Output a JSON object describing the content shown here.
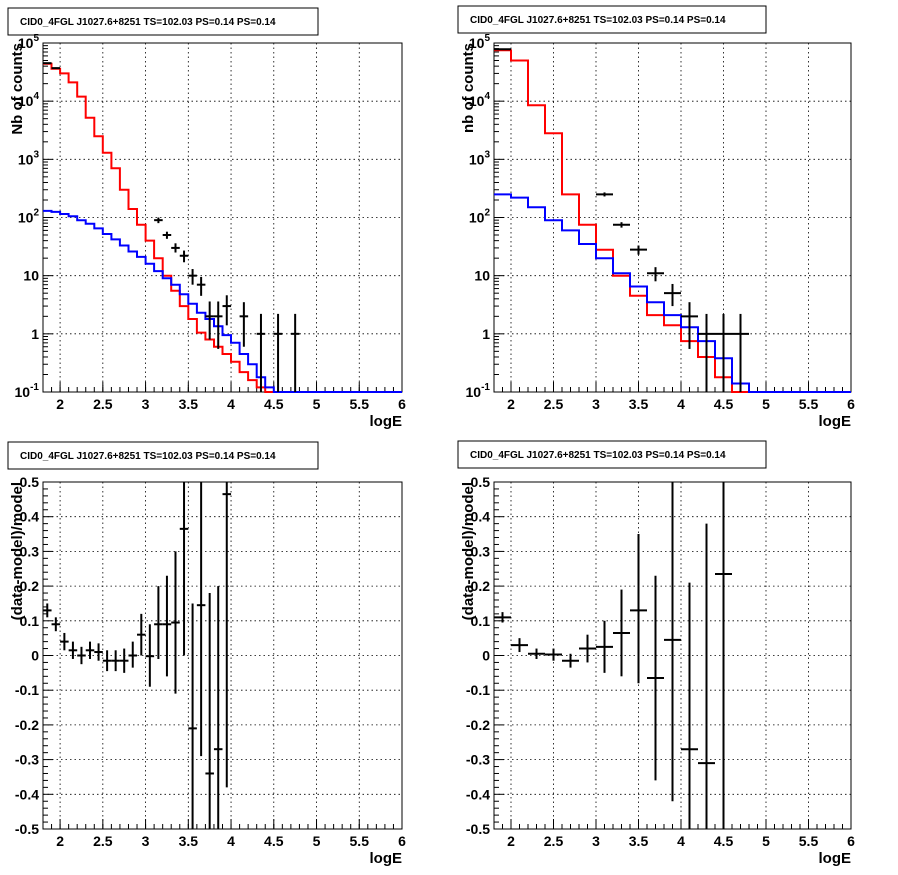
{
  "chart_data": [
    {
      "type": "step",
      "title": "CID0_4FGL J1027.6+8251 TS=102.03 PS=0.14 PS=0.14",
      "xlabel": "logE",
      "ylabel": "Nb of counts",
      "xlim": [
        1.8,
        6.0
      ],
      "ylim": [
        0.1,
        100000
      ],
      "yscale": "log",
      "grid": true,
      "x_ticks": [
        "2",
        "2.5",
        "3",
        "3.5",
        "4",
        "4.5",
        "5",
        "5.5",
        "6"
      ],
      "y_ticks": [
        "10^-1",
        "1",
        "10",
        "10^2",
        "10^3",
        "10^4",
        "10^5"
      ],
      "bin_width": 0.1,
      "bin_start": 1.8,
      "series": [
        {
          "role": "model_total",
          "color": "#ff0000",
          "values": [
            44000,
            36000,
            30000,
            21000,
            12000,
            5200,
            2500,
            1300,
            700,
            300,
            140,
            75,
            40,
            20,
            10,
            5.5,
            3.0,
            1.8,
            1.05,
            0.8,
            0.6,
            0.45,
            0.33,
            0.22,
            0.16,
            0.12,
            0.1,
            0.1,
            0.1,
            0.1,
            0.1,
            0.1,
            0.1,
            0.1,
            0.1,
            0.1,
            0.1,
            0.1,
            0.1,
            0.1,
            0.1,
            0.1
          ]
        },
        {
          "role": "model_source",
          "color": "#0000ff",
          "values": [
            130,
            125,
            115,
            105,
            90,
            78,
            65,
            52,
            42,
            33,
            26,
            21,
            16,
            12,
            9,
            7,
            4.8,
            3.3,
            2.3,
            1.8,
            1.35,
            0.95,
            0.7,
            0.45,
            0.3,
            0.18,
            0.12,
            0.1,
            0.1,
            0.1,
            0.1,
            0.1,
            0.1,
            0.1,
            0.1,
            0.1,
            0.1,
            0.1,
            0.1,
            0.1,
            0.1,
            0.1
          ]
        }
      ],
      "points": [
        {
          "x": 1.85,
          "y": 45000,
          "lo": 44000,
          "hi": 46000
        },
        {
          "x": 1.95,
          "y": 37000,
          "lo": 36000,
          "hi": 38000
        },
        {
          "x": 3.15,
          "y": 90,
          "lo": 80,
          "hi": 100
        },
        {
          "x": 3.25,
          "y": 50,
          "lo": 43,
          "hi": 57
        },
        {
          "x": 3.35,
          "y": 30,
          "lo": 25,
          "hi": 36
        },
        {
          "x": 3.45,
          "y": 22,
          "lo": 17,
          "hi": 27
        },
        {
          "x": 3.55,
          "y": 10,
          "lo": 7,
          "hi": 13
        },
        {
          "x": 3.65,
          "y": 7,
          "lo": 4.5,
          "hi": 9.5
        },
        {
          "x": 3.75,
          "y": 2,
          "lo": 0.8,
          "hi": 3.6
        },
        {
          "x": 3.85,
          "y": 2,
          "lo": 0.55,
          "hi": 3.6
        },
        {
          "x": 3.95,
          "y": 3,
          "lo": 1.4,
          "hi": 4.6
        },
        {
          "x": 4.15,
          "y": 2,
          "lo": 0.6,
          "hi": 3.5
        },
        {
          "x": 4.35,
          "y": 1,
          "lo": 0.1,
          "hi": 2.2
        },
        {
          "x": 4.55,
          "y": 1,
          "lo": 0.1,
          "hi": 2.2
        },
        {
          "x": 4.75,
          "y": 1,
          "lo": 0.1,
          "hi": 2.2
        }
      ]
    },
    {
      "type": "step",
      "title": "CID0_4FGL J1027.6+8251 TS=102.03 PS=0.14 PS=0.14",
      "xlabel": "logE",
      "ylabel": "nb of counts",
      "xlim": [
        1.8,
        6.0
      ],
      "ylim": [
        0.1,
        100000
      ],
      "yscale": "log",
      "grid": true,
      "x_ticks": [
        "2",
        "2.5",
        "3",
        "3.5",
        "4",
        "4.5",
        "5",
        "5.5",
        "6"
      ],
      "y_ticks": [
        "10^-1",
        "1",
        "10",
        "10^2",
        "10^3",
        "10^4",
        "10^5"
      ],
      "bin_width": 0.2,
      "bin_start": 1.8,
      "series": [
        {
          "role": "model_total",
          "color": "#ff0000",
          "values": [
            75000,
            50000,
            8500,
            2800,
            250,
            75,
            28,
            10,
            4.5,
            2.1,
            1.4,
            0.75,
            0.4,
            0.18,
            0.1,
            0.1,
            0.1,
            0.1,
            0.1,
            0.1,
            0.1
          ]
        },
        {
          "role": "model_source",
          "color": "#0000ff",
          "values": [
            250,
            220,
            150,
            90,
            60,
            35,
            20,
            11,
            6.5,
            3.5,
            2.1,
            1.3,
            0.75,
            0.38,
            0.14,
            0.1,
            0.1,
            0.1,
            0.1,
            0.1,
            0.1
          ]
        }
      ],
      "points": [
        {
          "x": 1.9,
          "y": 78000,
          "lo": 76000,
          "hi": 80000
        },
        {
          "x": 3.1,
          "y": 250,
          "lo": 230,
          "hi": 270
        },
        {
          "x": 3.3,
          "y": 75,
          "lo": 67,
          "hi": 83
        },
        {
          "x": 3.5,
          "y": 28,
          "lo": 23,
          "hi": 33
        },
        {
          "x": 3.7,
          "y": 11,
          "lo": 8,
          "hi": 14
        },
        {
          "x": 3.9,
          "y": 5,
          "lo": 3,
          "hi": 7.2
        },
        {
          "x": 4.1,
          "y": 2,
          "lo": 0.55,
          "hi": 3.5
        },
        {
          "x": 4.3,
          "y": 1,
          "lo": 0.1,
          "hi": 2.2
        },
        {
          "x": 4.5,
          "y": 1,
          "lo": 0.1,
          "hi": 2.2
        },
        {
          "x": 4.7,
          "y": 1,
          "lo": 0.1,
          "hi": 2.2
        }
      ]
    },
    {
      "type": "scatter",
      "title": "CID0_4FGL J1027.6+8251 TS=102.03 PS=0.14 PS=0.14",
      "xlabel": "logE",
      "ylabel": "(data-model)/model",
      "xlim": [
        1.8,
        6.0
      ],
      "ylim": [
        -0.5,
        0.5
      ],
      "grid": true,
      "x_ticks": [
        "2",
        "2.5",
        "3",
        "3.5",
        "4",
        "4.5",
        "5",
        "5.5",
        "6"
      ],
      "y_ticks": [
        "-0.5",
        "-0.4",
        "-0.3",
        "-0.2",
        "-0.1",
        "0",
        "0.1",
        "0.2",
        "0.3",
        "0.4",
        "0.5"
      ],
      "half_width": 0.05,
      "points": [
        {
          "x": 1.85,
          "y": 0.13,
          "lo": 0.11,
          "hi": 0.15
        },
        {
          "x": 1.95,
          "y": 0.09,
          "lo": 0.07,
          "hi": 0.11
        },
        {
          "x": 2.05,
          "y": 0.04,
          "lo": 0.015,
          "hi": 0.065
        },
        {
          "x": 2.15,
          "y": 0.015,
          "lo": -0.01,
          "hi": 0.04
        },
        {
          "x": 2.25,
          "y": 0.0,
          "lo": -0.025,
          "hi": 0.025
        },
        {
          "x": 2.35,
          "y": 0.015,
          "lo": -0.01,
          "hi": 0.04
        },
        {
          "x": 2.45,
          "y": 0.01,
          "lo": -0.015,
          "hi": 0.035
        },
        {
          "x": 2.55,
          "y": -0.015,
          "lo": -0.045,
          "hi": 0.015
        },
        {
          "x": 2.65,
          "y": -0.015,
          "lo": -0.045,
          "hi": 0.015
        },
        {
          "x": 2.75,
          "y": -0.015,
          "lo": -0.05,
          "hi": 0.02
        },
        {
          "x": 2.85,
          "y": 0.0,
          "lo": -0.035,
          "hi": 0.04
        },
        {
          "x": 2.95,
          "y": 0.06,
          "lo": 0.0,
          "hi": 0.12
        },
        {
          "x": 3.05,
          "y": -0.002,
          "lo": -0.09,
          "hi": 0.09
        },
        {
          "x": 3.15,
          "y": 0.09,
          "lo": -0.01,
          "hi": 0.2
        },
        {
          "x": 3.25,
          "y": 0.09,
          "lo": -0.06,
          "hi": 0.23
        },
        {
          "x": 3.35,
          "y": 0.095,
          "lo": -0.11,
          "hi": 0.3
        },
        {
          "x": 3.45,
          "y": 0.365,
          "lo": 0.0,
          "hi": 0.5
        },
        {
          "x": 3.55,
          "y": -0.21,
          "lo": -0.5,
          "hi": 0.15
        },
        {
          "x": 3.65,
          "y": 0.145,
          "lo": -0.29,
          "hi": 0.5
        },
        {
          "x": 3.75,
          "y": -0.34,
          "lo": -0.5,
          "hi": 0.18
        },
        {
          "x": 3.85,
          "y": -0.27,
          "lo": -0.5,
          "hi": 0.2
        },
        {
          "x": 3.95,
          "y": 0.465,
          "lo": -0.38,
          "hi": 0.5
        }
      ]
    },
    {
      "type": "scatter",
      "title": "CID0_4FGL J1027.6+8251 TS=102.03 PS=0.14 PS=0.14",
      "xlabel": "logE",
      "ylabel": "(data-model)/model",
      "xlim": [
        1.8,
        6.0
      ],
      "ylim": [
        -0.5,
        0.5
      ],
      "grid": true,
      "x_ticks": [
        "2",
        "2.5",
        "3",
        "3.5",
        "4",
        "4.5",
        "5",
        "5.5",
        "6"
      ],
      "y_ticks": [
        "-0.5",
        "-0.4",
        "-0.3",
        "-0.2",
        "-0.1",
        "0",
        "0.1",
        "0.2",
        "0.3",
        "0.4",
        "0.5"
      ],
      "half_width": 0.1,
      "points": [
        {
          "x": 1.9,
          "y": 0.11,
          "lo": 0.095,
          "hi": 0.125
        },
        {
          "x": 2.1,
          "y": 0.03,
          "lo": 0.01,
          "hi": 0.05
        },
        {
          "x": 2.3,
          "y": 0.005,
          "lo": -0.01,
          "hi": 0.02
        },
        {
          "x": 2.5,
          "y": 0.003,
          "lo": -0.015,
          "hi": 0.02
        },
        {
          "x": 2.7,
          "y": -0.015,
          "lo": -0.035,
          "hi": 0.005
        },
        {
          "x": 2.9,
          "y": 0.02,
          "lo": -0.02,
          "hi": 0.06
        },
        {
          "x": 3.1,
          "y": 0.025,
          "lo": -0.05,
          "hi": 0.1
        },
        {
          "x": 3.3,
          "y": 0.065,
          "lo": -0.06,
          "hi": 0.19
        },
        {
          "x": 3.5,
          "y": 0.13,
          "lo": -0.08,
          "hi": 0.35
        },
        {
          "x": 3.7,
          "y": -0.065,
          "lo": -0.36,
          "hi": 0.23
        },
        {
          "x": 3.9,
          "y": 0.045,
          "lo": -0.42,
          "hi": 0.5
        },
        {
          "x": 4.1,
          "y": -0.27,
          "lo": -0.5,
          "hi": 0.21
        },
        {
          "x": 4.3,
          "y": -0.31,
          "lo": -0.5,
          "hi": 0.38
        },
        {
          "x": 4.5,
          "y": 0.235,
          "lo": -0.5,
          "hi": 0.5
        }
      ]
    }
  ]
}
